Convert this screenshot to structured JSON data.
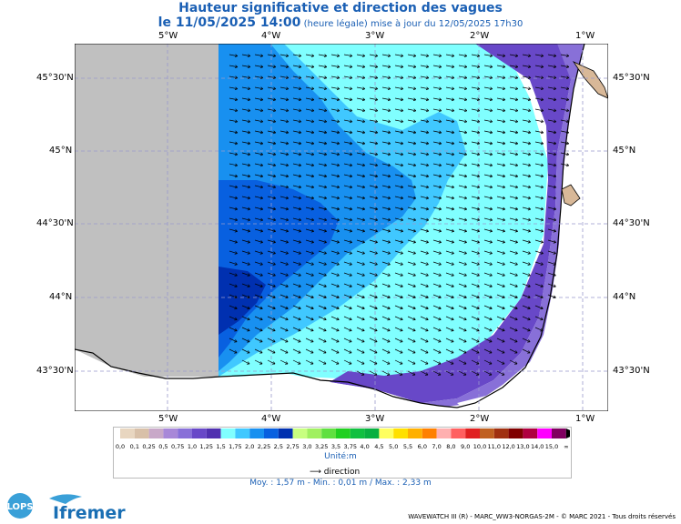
{
  "title": {
    "line1": "Hauteur significative et direction des vagues",
    "date": "le 11/05/2025 14:00",
    "note": "(heure légale) mise à jour du 12/05/2025 17h30"
  },
  "axes": {
    "lon_labels": [
      "5°W",
      "4°W",
      "3°W",
      "2°W",
      "1°W"
    ],
    "lat_labels": [
      "45°30'N",
      "45°N",
      "44°30'N",
      "44°N",
      "43°30'N"
    ]
  },
  "legend": {
    "values": [
      "0,0",
      "0,1",
      "0,25",
      "0,5",
      "0,75",
      "1,0",
      "1,25",
      "1,5",
      "1,75",
      "2,0",
      "2,25",
      "2,5",
      "2,75",
      "3,0",
      "3,25",
      "3,5",
      "3,75",
      "4,0",
      "4,5",
      "5,0",
      "5,5",
      "6,0",
      "7,0",
      "8,0",
      "9,0",
      "10,0",
      "11,0",
      "12,0",
      "13,0",
      "14,0",
      "15,0",
      "∞"
    ],
    "colors": [
      "#e8d6c0",
      "#d8c0a8",
      "#c8a8c8",
      "#a888d8",
      "#8870d8",
      "#6848c8",
      "#5030b0",
      "#80ffff",
      "#40c8ff",
      "#1890f0",
      "#0860e0",
      "#0030b0",
      "#c8ff80",
      "#a0f060",
      "#60e040",
      "#20d020",
      "#10c040",
      "#08b040",
      "#ffff60",
      "#ffe000",
      "#ffb000",
      "#ff8000",
      "#ffb0b0",
      "#ff6060",
      "#e02020",
      "#c06020",
      "#a03010",
      "#800000",
      "#b00040",
      "#ff00ff",
      "#800060"
    ],
    "unit": "Unité:m",
    "direction_label": "direction",
    "stats": "Moy. : 1,57 m   -   Min. : 0,01 m / Max. : 2,33 m"
  },
  "logos": {
    "lops": "LOPS",
    "ifremer": "Ifremer"
  },
  "footer": "WAVEWATCH III (R) - MARC_WW3-NORGAS-2M - © MARC 2021 - Tous droits réservés"
}
